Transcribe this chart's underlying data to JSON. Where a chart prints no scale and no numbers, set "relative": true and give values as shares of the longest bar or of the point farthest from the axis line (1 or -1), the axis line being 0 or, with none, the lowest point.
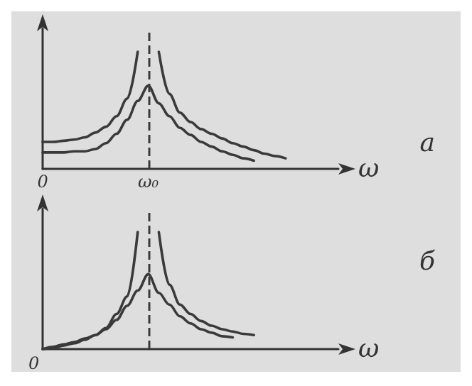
{
  "chart_data": [
    {
      "type": "line",
      "xlabel": "ω",
      "relative": true,
      "marker": "none",
      "tick_labels": "x",
      "annotations": [
        "а"
      ],
      "categories": [
        "0",
        null,
        null,
        null,
        null,
        null,
        null,
        null,
        null,
        null,
        "ω₀",
        null,
        null,
        null,
        null,
        null,
        null,
        null,
        null,
        null,
        null,
        null,
        null,
        null,
        null,
        null,
        null,
        null,
        null
      ],
      "ref_lines": [
        {
          "axis": "x",
          "value": "ω₀",
          "line_style": "dashed",
          "color": "#3a3a3a"
        }
      ],
      "series": [
        {
          "color": "#3a3a3a",
          "values": [
            0.23,
            0.23,
            0.24,
            0.25,
            0.27,
            0.31,
            0.36,
            0.45,
            0.6,
            1.0,
            null,
            1.0,
            0.64,
            0.48,
            0.4,
            0.34,
            0.3,
            0.26,
            0.22,
            0.19,
            0.16,
            0.13,
            0.11,
            0.09,
            null,
            null,
            null,
            null,
            null
          ]
        },
        {
          "color": "#3a3a3a",
          "values": [
            0.14,
            0.14,
            0.14,
            0.15,
            0.15,
            0.17,
            0.22,
            0.3,
            0.42,
            0.58,
            0.71,
            0.56,
            0.45,
            0.35,
            0.29,
            0.23,
            0.19,
            0.15,
            0.12,
            0.09,
            0.07,
            null,
            null,
            null,
            null,
            null,
            null,
            null,
            null
          ]
        }
      ]
    },
    {
      "type": "line",
      "xlabel": "ω",
      "relative": true,
      "marker": "none",
      "tick_labels": "x",
      "annotations": [
        "0",
        "б"
      ],
      "categories": [
        null,
        null,
        null,
        null,
        null,
        null,
        null,
        null,
        null,
        null,
        null,
        null,
        null,
        null,
        null,
        null,
        null,
        null,
        null,
        null,
        null,
        null,
        null,
        null,
        null,
        null,
        null,
        null,
        null
      ],
      "series": [
        {
          "color": "#3a3a3a",
          "values": [
            0,
            0.02,
            0.04,
            0.06,
            0.09,
            0.12,
            0.18,
            0.3,
            0.45,
            1.0,
            null,
            1.0,
            0.55,
            0.38,
            0.3,
            0.24,
            0.2,
            0.17,
            0.15,
            0.13,
            0.12,
            null,
            null,
            null,
            null,
            null,
            null,
            null,
            null
          ]
        },
        {
          "color": "#3a3a3a",
          "values": [
            0,
            0.01,
            0.03,
            0.05,
            0.08,
            0.12,
            0.17,
            0.25,
            0.37,
            0.5,
            0.64,
            0.48,
            0.38,
            0.28,
            0.22,
            0.17,
            0.14,
            0.11,
            0.1,
            null,
            null,
            null,
            null,
            null,
            null,
            null,
            null,
            null,
            null
          ]
        }
      ]
    }
  ]
}
